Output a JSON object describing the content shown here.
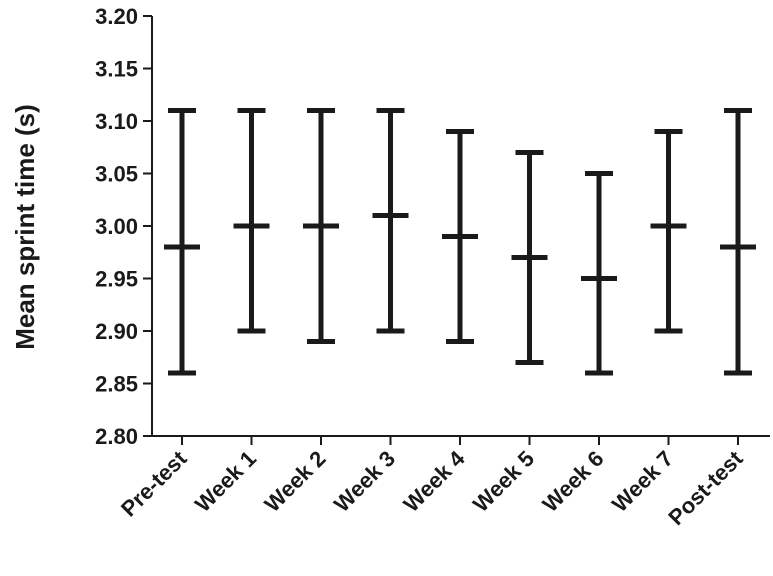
{
  "chart_data": {
    "type": "errorbar",
    "title": "",
    "xlabel": "",
    "ylabel": "Mean sprint time (s)",
    "categories": [
      "Pre-test",
      "Week 1",
      "Week 2",
      "Week 3",
      "Week 4",
      "Week 5",
      "Week 6",
      "Week 7",
      "Post-test"
    ],
    "mean": [
      2.98,
      3.0,
      3.0,
      3.01,
      2.99,
      2.97,
      2.95,
      3.0,
      2.98
    ],
    "upper": [
      3.11,
      3.11,
      3.11,
      3.11,
      3.09,
      3.07,
      3.05,
      3.09,
      3.11
    ],
    "lower": [
      2.86,
      2.9,
      2.89,
      2.9,
      2.89,
      2.87,
      2.86,
      2.9,
      2.86
    ],
    "ylim": [
      2.8,
      3.2
    ],
    "yticks": [
      "2.80",
      "2.85",
      "2.90",
      "2.95",
      "3.00",
      "3.05",
      "3.10",
      "3.15",
      "3.20"
    ],
    "grid": false,
    "legend": "none",
    "color": "#1a1a1a"
  }
}
